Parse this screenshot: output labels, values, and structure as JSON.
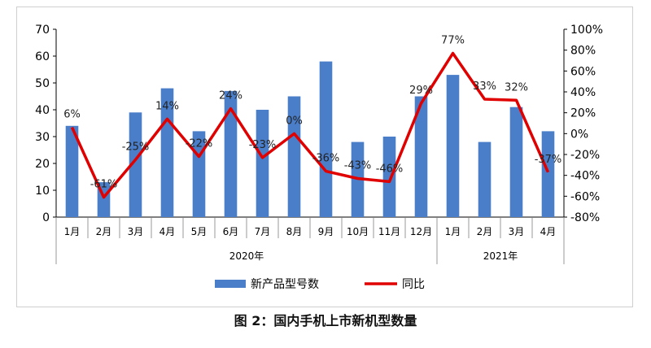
{
  "chart_data": {
    "type": "bar+line",
    "categories": [
      "1月",
      "2月",
      "3月",
      "4月",
      "5月",
      "6月",
      "7月",
      "8月",
      "9月",
      "10月",
      "11月",
      "12月",
      "1月",
      "2月",
      "3月",
      "4月"
    ],
    "year_groups": [
      {
        "label": "2020年",
        "start": 0,
        "end": 11
      },
      {
        "label": "2021年",
        "start": 12,
        "end": 15
      }
    ],
    "series": [
      {
        "name": "新产品型号数",
        "type": "bar",
        "axis": "left",
        "values": [
          34,
          13,
          39,
          48,
          32,
          47,
          40,
          45,
          58,
          28,
          30,
          45,
          53,
          28,
          41,
          32
        ]
      },
      {
        "name": "同比",
        "type": "line",
        "axis": "right",
        "values": [
          6,
          -61,
          -25,
          14,
          -22,
          24,
          -23,
          0,
          -36,
          -43,
          -46,
          29,
          77,
          33,
          32,
          -37
        ],
        "labels": [
          "6%",
          "-61%",
          "-25%",
          "14%",
          "-22%",
          "24%",
          "-23%",
          "0%",
          "-36%",
          "-43%",
          "-46%",
          "29%",
          "77%",
          "33%",
          "32%",
          "-37%"
        ]
      }
    ],
    "left_axis": {
      "min": 0,
      "max": 70,
      "ticks": [
        "0",
        "10",
        "20",
        "30",
        "40",
        "50",
        "60",
        "70"
      ]
    },
    "right_axis": {
      "min": -80,
      "max": 100,
      "ticks": [
        "-80%",
        "-60%",
        "-40%",
        "-20%",
        "0%",
        "20%",
        "40%",
        "60%",
        "80%",
        "100%"
      ]
    },
    "legend": {
      "position": "bottom",
      "items": [
        "新产品型号数",
        "同比"
      ]
    }
  },
  "colors": {
    "bar": "#4a7ec9",
    "line": "#e00000",
    "axis": "#000000",
    "grid": "#7f7f7f"
  },
  "caption": "图 2：国内手机上市新机型数量"
}
